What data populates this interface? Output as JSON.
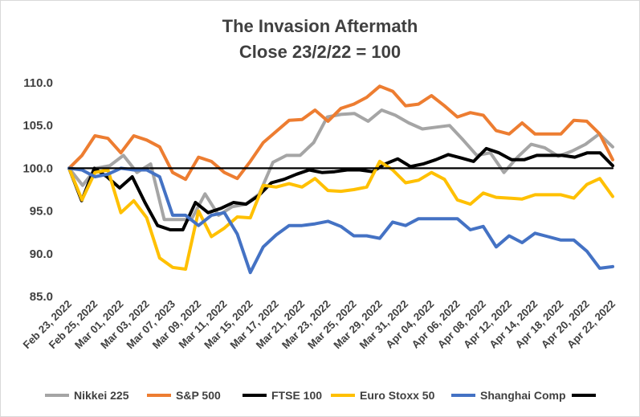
{
  "chart_data": {
    "type": "line",
    "title": "The Invasion Aftermath",
    "subtitle": "Close 23/2/22 = 100",
    "ylim": [
      85,
      110
    ],
    "yticks": [
      "85.0",
      "90.0",
      "95.0",
      "100.0",
      "105.0",
      "110.0"
    ],
    "grid": false,
    "legend_position": "bottom",
    "x_labels": [
      "Feb 23, 2022",
      "Feb 25, 2022",
      "Mar 01, 2022",
      "Mar 03, 2022",
      "Mar 07, 2023",
      "Mar 09, 2022",
      "Mar 11, 2022",
      "Mar 15, 2022",
      "Mar 17, 2022",
      "Mar 21, 2022",
      "Mar 23, 2022",
      "Mar 25, 2022",
      "Mar 29, 2022",
      "Mar 31, 2022",
      "Apr 04, 2022",
      "Apr 06, 2022",
      "Apr 08, 2022",
      "Apr 12, 2022",
      "Apr 14, 2022",
      "Apr 18, 2022",
      "Apr 20, 2022",
      "Apr 22, 2022"
    ],
    "series": [
      {
        "name": "Nikkei 225",
        "color": "#a5a5a5",
        "values": [
          100,
          98,
          100,
          100.3,
          101.5,
          99.5,
          100.5,
          94,
          94,
          94,
          97,
          94.5,
          95.5,
          95.8,
          97,
          100.7,
          101.5,
          101.5,
          103,
          106,
          106.3,
          106.4,
          105.5,
          106.8,
          106.2,
          105.3,
          104.6,
          104.8,
          105,
          103.3,
          101.5,
          101.8,
          99.5,
          101.3,
          102.8,
          102.4,
          101.4,
          102,
          102.8,
          104,
          102.5
        ]
      },
      {
        "name": "S&P 500",
        "color": "#ed7d31",
        "values": [
          100,
          101.5,
          103.8,
          103.5,
          101.8,
          103.8,
          103.3,
          102.5,
          99.5,
          98.7,
          101.3,
          100.8,
          99.5,
          98.8,
          100.8,
          103,
          104.3,
          105.6,
          105.7,
          106.8,
          105.5,
          107,
          107.5,
          108.3,
          109.6,
          109,
          107.3,
          107.5,
          108.5,
          107.3,
          106,
          106.5,
          106.2,
          104.4,
          104,
          105.3,
          104,
          104,
          104,
          105.6,
          105.5,
          104,
          101
        ]
      },
      {
        "name": "FTSE 100",
        "color": "#000000",
        "values": [
          100,
          96.2,
          100,
          99,
          97.7,
          99,
          96,
          93.3,
          92.8,
          92.8,
          96,
          94.8,
          95.3,
          96,
          95.8,
          96.8,
          98.3,
          98.7,
          99.3,
          99.8,
          99.5,
          99.6,
          99.8,
          99.8,
          99.6,
          100.5,
          101.1,
          100.2,
          100.5,
          101,
          101.6,
          101.2,
          100.8,
          102.3,
          101.8,
          101,
          101,
          101.5,
          101.5,
          101.5,
          101.3,
          101.8,
          101.8,
          100.3
        ]
      },
      {
        "name": "Euro Stoxx 50",
        "color": "#ffc000",
        "values": [
          100,
          96.3,
          99.5,
          99.8,
          94.8,
          96.2,
          94.2,
          89.5,
          88.4,
          88.2,
          95,
          92,
          93,
          94.3,
          94.2,
          98,
          97.8,
          98.2,
          97.8,
          98.8,
          97.4,
          97.3,
          97.5,
          97.8,
          100.8,
          99.8,
          98.3,
          98.6,
          99.5,
          98.7,
          96.3,
          95.8,
          97.1,
          96.6,
          96.5,
          96.4,
          96.9,
          96.9,
          96.9,
          96.5,
          98.1,
          98.8,
          96.7
        ]
      },
      {
        "name": "Shanghai Comp",
        "color": "#4472c4",
        "values": [
          100,
          99.8,
          99,
          99.3,
          100,
          99.8,
          99.8,
          99,
          94.5,
          94.5,
          93.3,
          94.5,
          94.8,
          92.3,
          87.8,
          90.8,
          92.2,
          93.3,
          93.3,
          93.5,
          93.8,
          93.2,
          92.1,
          92.1,
          91.8,
          93.7,
          93.3,
          94.1,
          94.1,
          94.1,
          94.1,
          92.8,
          93.2,
          90.8,
          92.1,
          91.3,
          92.4,
          92,
          91.6,
          91.6,
          90.3,
          88.3,
          88.5
        ]
      },
      {
        "name": "",
        "color": "#000000",
        "is_reference": true,
        "values": [
          100,
          100
        ]
      }
    ]
  }
}
